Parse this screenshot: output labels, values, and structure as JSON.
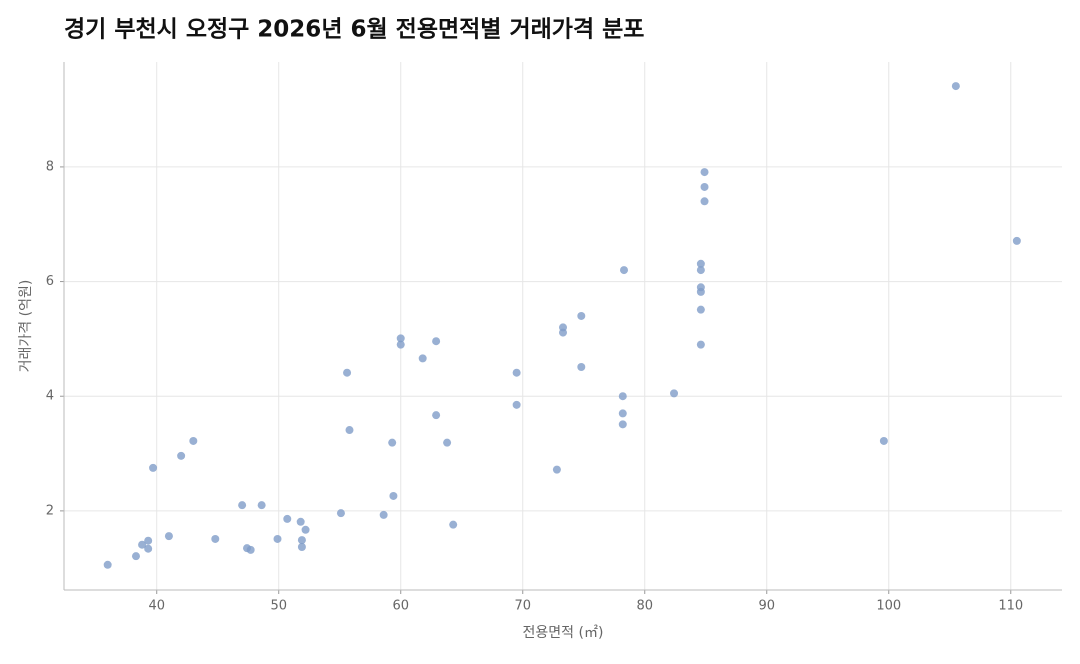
{
  "chart_data": {
    "type": "scatter",
    "title": "경기 부천시 오정구 2026년 6월 전용면적별 거래가격 분포",
    "x_label": "전용면적 (㎡)",
    "y_label": "거래가격 (억원)",
    "color": "#7f9cc8",
    "grid": true,
    "xlim": [
      32.4,
      114.2
    ],
    "xticks": [
      40,
      50,
      60,
      70,
      80,
      90,
      100,
      110
    ],
    "ylim": [
      0.62,
      9.83
    ],
    "yticks": [
      2,
      4,
      6,
      8
    ],
    "x": [
      35.98,
      38.3,
      38.8,
      39.3,
      39.3,
      39.7,
      41.0,
      42.0,
      43.0,
      44.8,
      47.0,
      47.4,
      47.7,
      48.6,
      49.9,
      50.7,
      51.8,
      51.9,
      51.9,
      52.2,
      55.1,
      55.6,
      55.8,
      58.6,
      59.3,
      59.4,
      60.0,
      60.0,
      61.8,
      62.9,
      62.9,
      63.8,
      64.3,
      69.5,
      69.5,
      72.8,
      73.3,
      73.3,
      74.8,
      74.8,
      78.2,
      78.2,
      78.2,
      78.3,
      82.4,
      84.6,
      84.6,
      84.6,
      84.6,
      84.6,
      84.6,
      84.9,
      84.9,
      84.9,
      99.6,
      105.5,
      110.5
    ],
    "values": [
      1.06,
      1.21,
      1.41,
      1.48,
      1.34,
      2.75,
      1.56,
      2.96,
      3.22,
      1.51,
      2.1,
      1.35,
      1.32,
      2.1,
      1.51,
      1.86,
      1.81,
      1.49,
      1.37,
      1.67,
      1.96,
      4.41,
      3.41,
      1.93,
      3.19,
      2.26,
      5.01,
      4.9,
      4.66,
      4.96,
      3.67,
      3.19,
      1.76,
      4.41,
      3.85,
      2.72,
      5.2,
      5.11,
      5.4,
      4.51,
      4.0,
      3.7,
      3.51,
      6.2,
      4.05,
      6.31,
      6.2,
      5.9,
      5.82,
      5.51,
      4.9,
      7.91,
      7.65,
      7.4,
      3.22,
      9.41,
      6.71
    ]
  }
}
